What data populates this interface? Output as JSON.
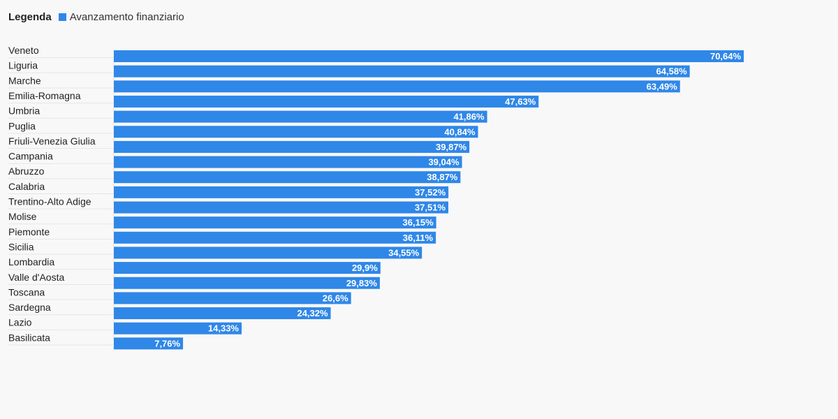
{
  "legend": {
    "title": "Legenda",
    "series_label": "Avanzamento finanziario",
    "color": "#2f87e8"
  },
  "chart_data": {
    "type": "bar",
    "orientation": "horizontal",
    "title": "",
    "xlabel": "",
    "ylabel": "",
    "xlim": [
      0,
      100
    ],
    "grid": false,
    "legend_position": "top-left",
    "value_suffix": "%",
    "categories": [
      "Veneto",
      "Liguria",
      "Marche",
      "Emilia-Romagna",
      "Umbria",
      "Puglia",
      "Friuli-Venezia Giulia",
      "Campania",
      "Abruzzo",
      "Calabria",
      "Trentino-Alto Adige",
      "Molise",
      "Piemonte",
      "Sicilia",
      "Lombardia",
      "Valle d'Aosta",
      "Toscana",
      "Sardegna",
      "Lazio",
      "Basilicata"
    ],
    "series": [
      {
        "name": "Avanzamento finanziario",
        "color": "#2f87e8",
        "values": [
          70.64,
          64.58,
          63.49,
          47.63,
          41.86,
          40.84,
          39.87,
          39.04,
          38.87,
          37.52,
          37.51,
          36.15,
          36.11,
          34.55,
          29.9,
          29.83,
          26.6,
          24.32,
          14.33,
          7.76
        ],
        "labels": [
          "70,64%",
          "64,58%",
          "63,49%",
          "47,63%",
          "41,86%",
          "40,84%",
          "39,87%",
          "39,04%",
          "38,87%",
          "37,52%",
          "37,51%",
          "36,15%",
          "36,11%",
          "34,55%",
          "29,9%",
          "29,83%",
          "26,6%",
          "24,32%",
          "14,33%",
          "7,76%"
        ]
      }
    ]
  }
}
